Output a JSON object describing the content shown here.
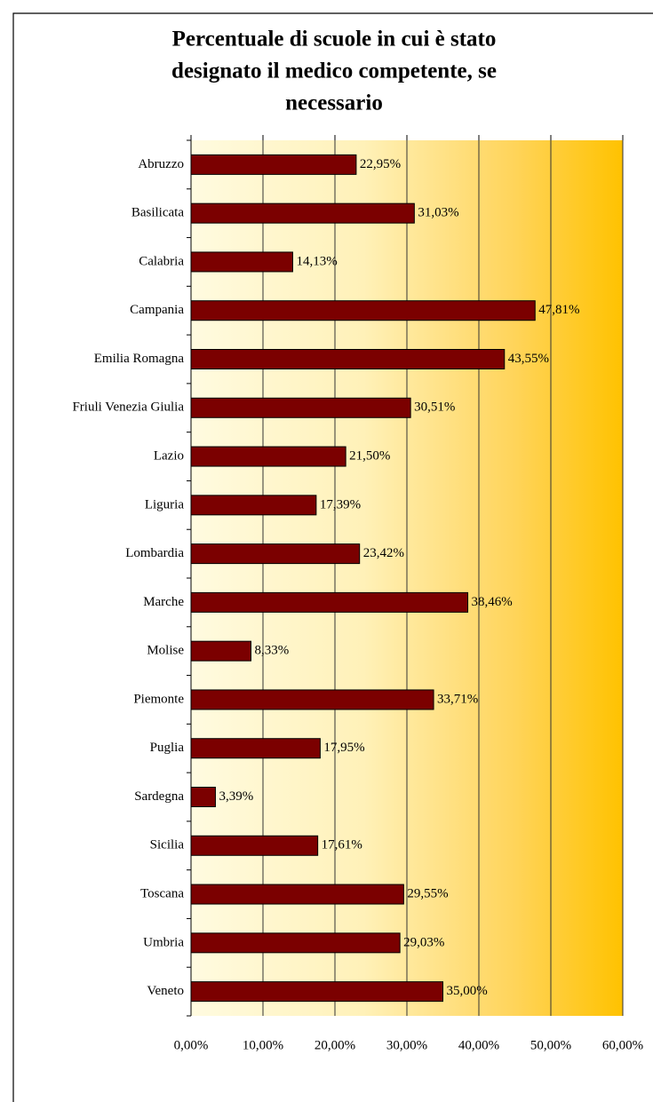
{
  "chart_data": {
    "type": "bar",
    "orientation": "horizontal",
    "title": [
      "Percentuale di scuole in cui è stato",
      "designato il medico competente, se",
      "necessario"
    ],
    "categories": [
      "Abruzzo",
      "Basilicata",
      "Calabria",
      "Campania",
      "Emilia Romagna",
      "Friuli Venezia Giulia",
      "Lazio",
      "Liguria",
      "Lombardia",
      "Marche",
      "Molise",
      "Piemonte",
      "Puglia",
      "Sardegna",
      "Sicilia",
      "Toscana",
      "Umbria",
      "Veneto"
    ],
    "values": [
      22.95,
      31.03,
      14.13,
      47.81,
      43.55,
      30.51,
      21.5,
      17.39,
      23.42,
      38.46,
      8.33,
      33.71,
      17.95,
      3.39,
      17.61,
      29.55,
      29.03,
      35.0
    ],
    "value_labels": [
      "22,95%",
      "31,03%",
      "14,13%",
      "47,81%",
      "43,55%",
      "30,51%",
      "21,50%",
      "17,39%",
      "23,42%",
      "38,46%",
      "8,33%",
      "33,71%",
      "17,95%",
      "3,39%",
      "17,61%",
      "29,55%",
      "29,03%",
      "35,00%"
    ],
    "color": "#7b0000",
    "xlim": [
      0,
      60
    ],
    "xticks": [
      {
        "value": 0,
        "label": "0,00%"
      },
      {
        "value": 10,
        "label": "10,00%"
      },
      {
        "value": 20,
        "label": "20,00%"
      },
      {
        "value": 30,
        "label": "30,00%"
      },
      {
        "value": 40,
        "label": "40,00%"
      },
      {
        "value": 50,
        "label": "50,00%"
      },
      {
        "value": 60,
        "label": "60,00%"
      }
    ],
    "grid": true
  }
}
